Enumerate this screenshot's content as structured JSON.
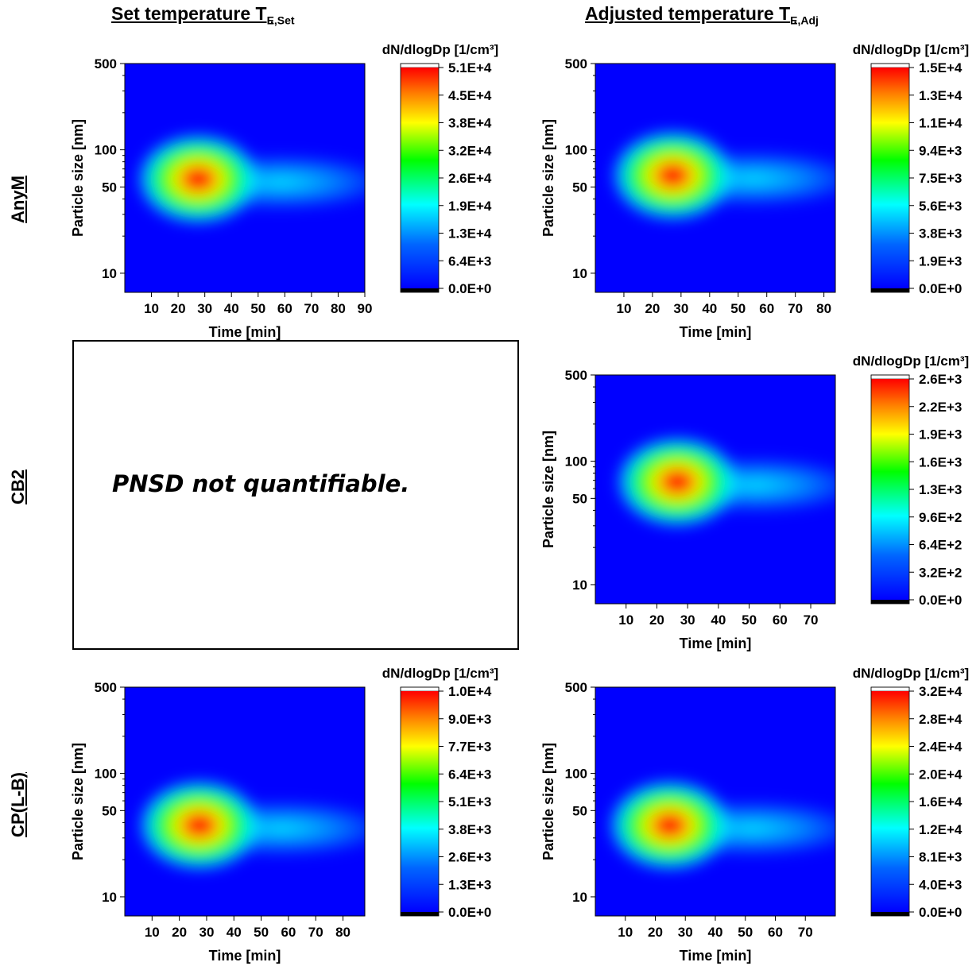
{
  "column_titles": [
    {
      "main": "Set temperature T",
      "sub": "E,Set"
    },
    {
      "main": "Adjusted temperature T",
      "sub": "E,Adj"
    }
  ],
  "row_labels": [
    "AnyM",
    "CB2",
    "CP(L-B)"
  ],
  "not_quantifiable_text": "PNSD not quantifiable.",
  "colorbar_colors": [
    "#000000",
    "#0000ff",
    "#0066ff",
    "#00ffff",
    "#00ff00",
    "#ffff00",
    "#ff8000",
    "#ff0000",
    "#ffffff"
  ],
  "chart_data": [
    {
      "type": "heatmap",
      "row": "AnyM",
      "column": "Set temperature",
      "xlabel": "Time [min]",
      "ylabel": "Particle size [nm]",
      "xticks": [
        10,
        20,
        30,
        40,
        50,
        60,
        70,
        80,
        90
      ],
      "xlim": [
        0,
        90
      ],
      "yticks": [
        10,
        50,
        100,
        500
      ],
      "ylim": [
        7,
        500
      ],
      "yscale": "log",
      "colorbar_label": "dN/dlogDp [1/cm³]",
      "colorbar_ticks": [
        "5.1E+4",
        "4.5E+4",
        "3.8E+4",
        "3.2E+4",
        "2.6E+4",
        "1.9E+4",
        "1.3E+4",
        "6.4E+3",
        "0.0E+0"
      ],
      "peak": {
        "time": 21,
        "size": 58
      },
      "mode_size_trend": [
        {
          "time": 15,
          "size": 55
        },
        {
          "time": 40,
          "size": 55
        },
        {
          "time": 90,
          "size": 55
        }
      ]
    },
    {
      "type": "heatmap",
      "row": "AnyM",
      "column": "Adjusted temperature",
      "xlabel": "Time [min]",
      "ylabel": "Particle size [nm]",
      "xticks": [
        10,
        20,
        30,
        40,
        50,
        60,
        70,
        80
      ],
      "xlim": [
        0,
        84
      ],
      "yticks": [
        10,
        50,
        100,
        500
      ],
      "ylim": [
        7,
        500
      ],
      "yscale": "log",
      "colorbar_label": "dN/dlogDp [1/cm³]",
      "colorbar_ticks": [
        "1.5E+4",
        "1.3E+4",
        "1.1E+4",
        "9.4E+3",
        "7.5E+3",
        "5.6E+3",
        "3.8E+3",
        "1.9E+3",
        "0.0E+0"
      ],
      "peak": {
        "time": 21,
        "size": 62
      }
    },
    {
      "type": "heatmap",
      "row": "CB2",
      "column": "Adjusted temperature",
      "xlabel": "Time [min]",
      "ylabel": "Particle size [nm]",
      "xticks": [
        10,
        20,
        30,
        40,
        50,
        60,
        70
      ],
      "xlim": [
        0,
        78
      ],
      "yticks": [
        10,
        50,
        100,
        500
      ],
      "ylim": [
        7,
        500
      ],
      "yscale": "log",
      "colorbar_label": "dN/dlogDp [1/cm³]",
      "colorbar_ticks": [
        "2.6E+3",
        "2.2E+3",
        "1.9E+3",
        "1.6E+3",
        "1.3E+3",
        "9.6E+2",
        "6.4E+2",
        "3.2E+2",
        "0.0E+0"
      ],
      "peak": {
        "time": 21,
        "size": 68
      }
    },
    {
      "type": "heatmap",
      "row": "CP(L-B)",
      "column": "Set temperature",
      "xlabel": "Time [min]",
      "ylabel": "Particle size [nm]",
      "xticks": [
        10,
        20,
        30,
        40,
        50,
        60,
        70,
        80
      ],
      "xlim": [
        0,
        88
      ],
      "yticks": [
        10,
        50,
        100,
        500
      ],
      "ylim": [
        7,
        500
      ],
      "yscale": "log",
      "colorbar_label": "dN/dlogDp [1/cm³]",
      "colorbar_ticks": [
        "1.0E+4",
        "9.0E+3",
        "7.7E+3",
        "6.4E+3",
        "5.1E+3",
        "3.8E+3",
        "2.6E+3",
        "1.3E+3",
        "0.0E+0"
      ],
      "peak": {
        "time": 21,
        "size": 38
      }
    },
    {
      "type": "heatmap",
      "row": "CP(L-B)",
      "column": "Adjusted temperature",
      "xlabel": "Time [min]",
      "ylabel": "Particle size [nm]",
      "xticks": [
        10,
        20,
        30,
        40,
        50,
        60,
        70
      ],
      "xlim": [
        0,
        80
      ],
      "yticks": [
        10,
        50,
        100,
        500
      ],
      "ylim": [
        7,
        500
      ],
      "yscale": "log",
      "colorbar_label": "dN/dlogDp [1/cm³]",
      "colorbar_ticks": [
        "3.2E+4",
        "2.8E+4",
        "2.4E+4",
        "2.0E+4",
        "1.6E+4",
        "1.2E+4",
        "8.1E+3",
        "4.0E+3",
        "0.0E+0"
      ],
      "peak": {
        "time": 19,
        "size": 38
      }
    }
  ]
}
